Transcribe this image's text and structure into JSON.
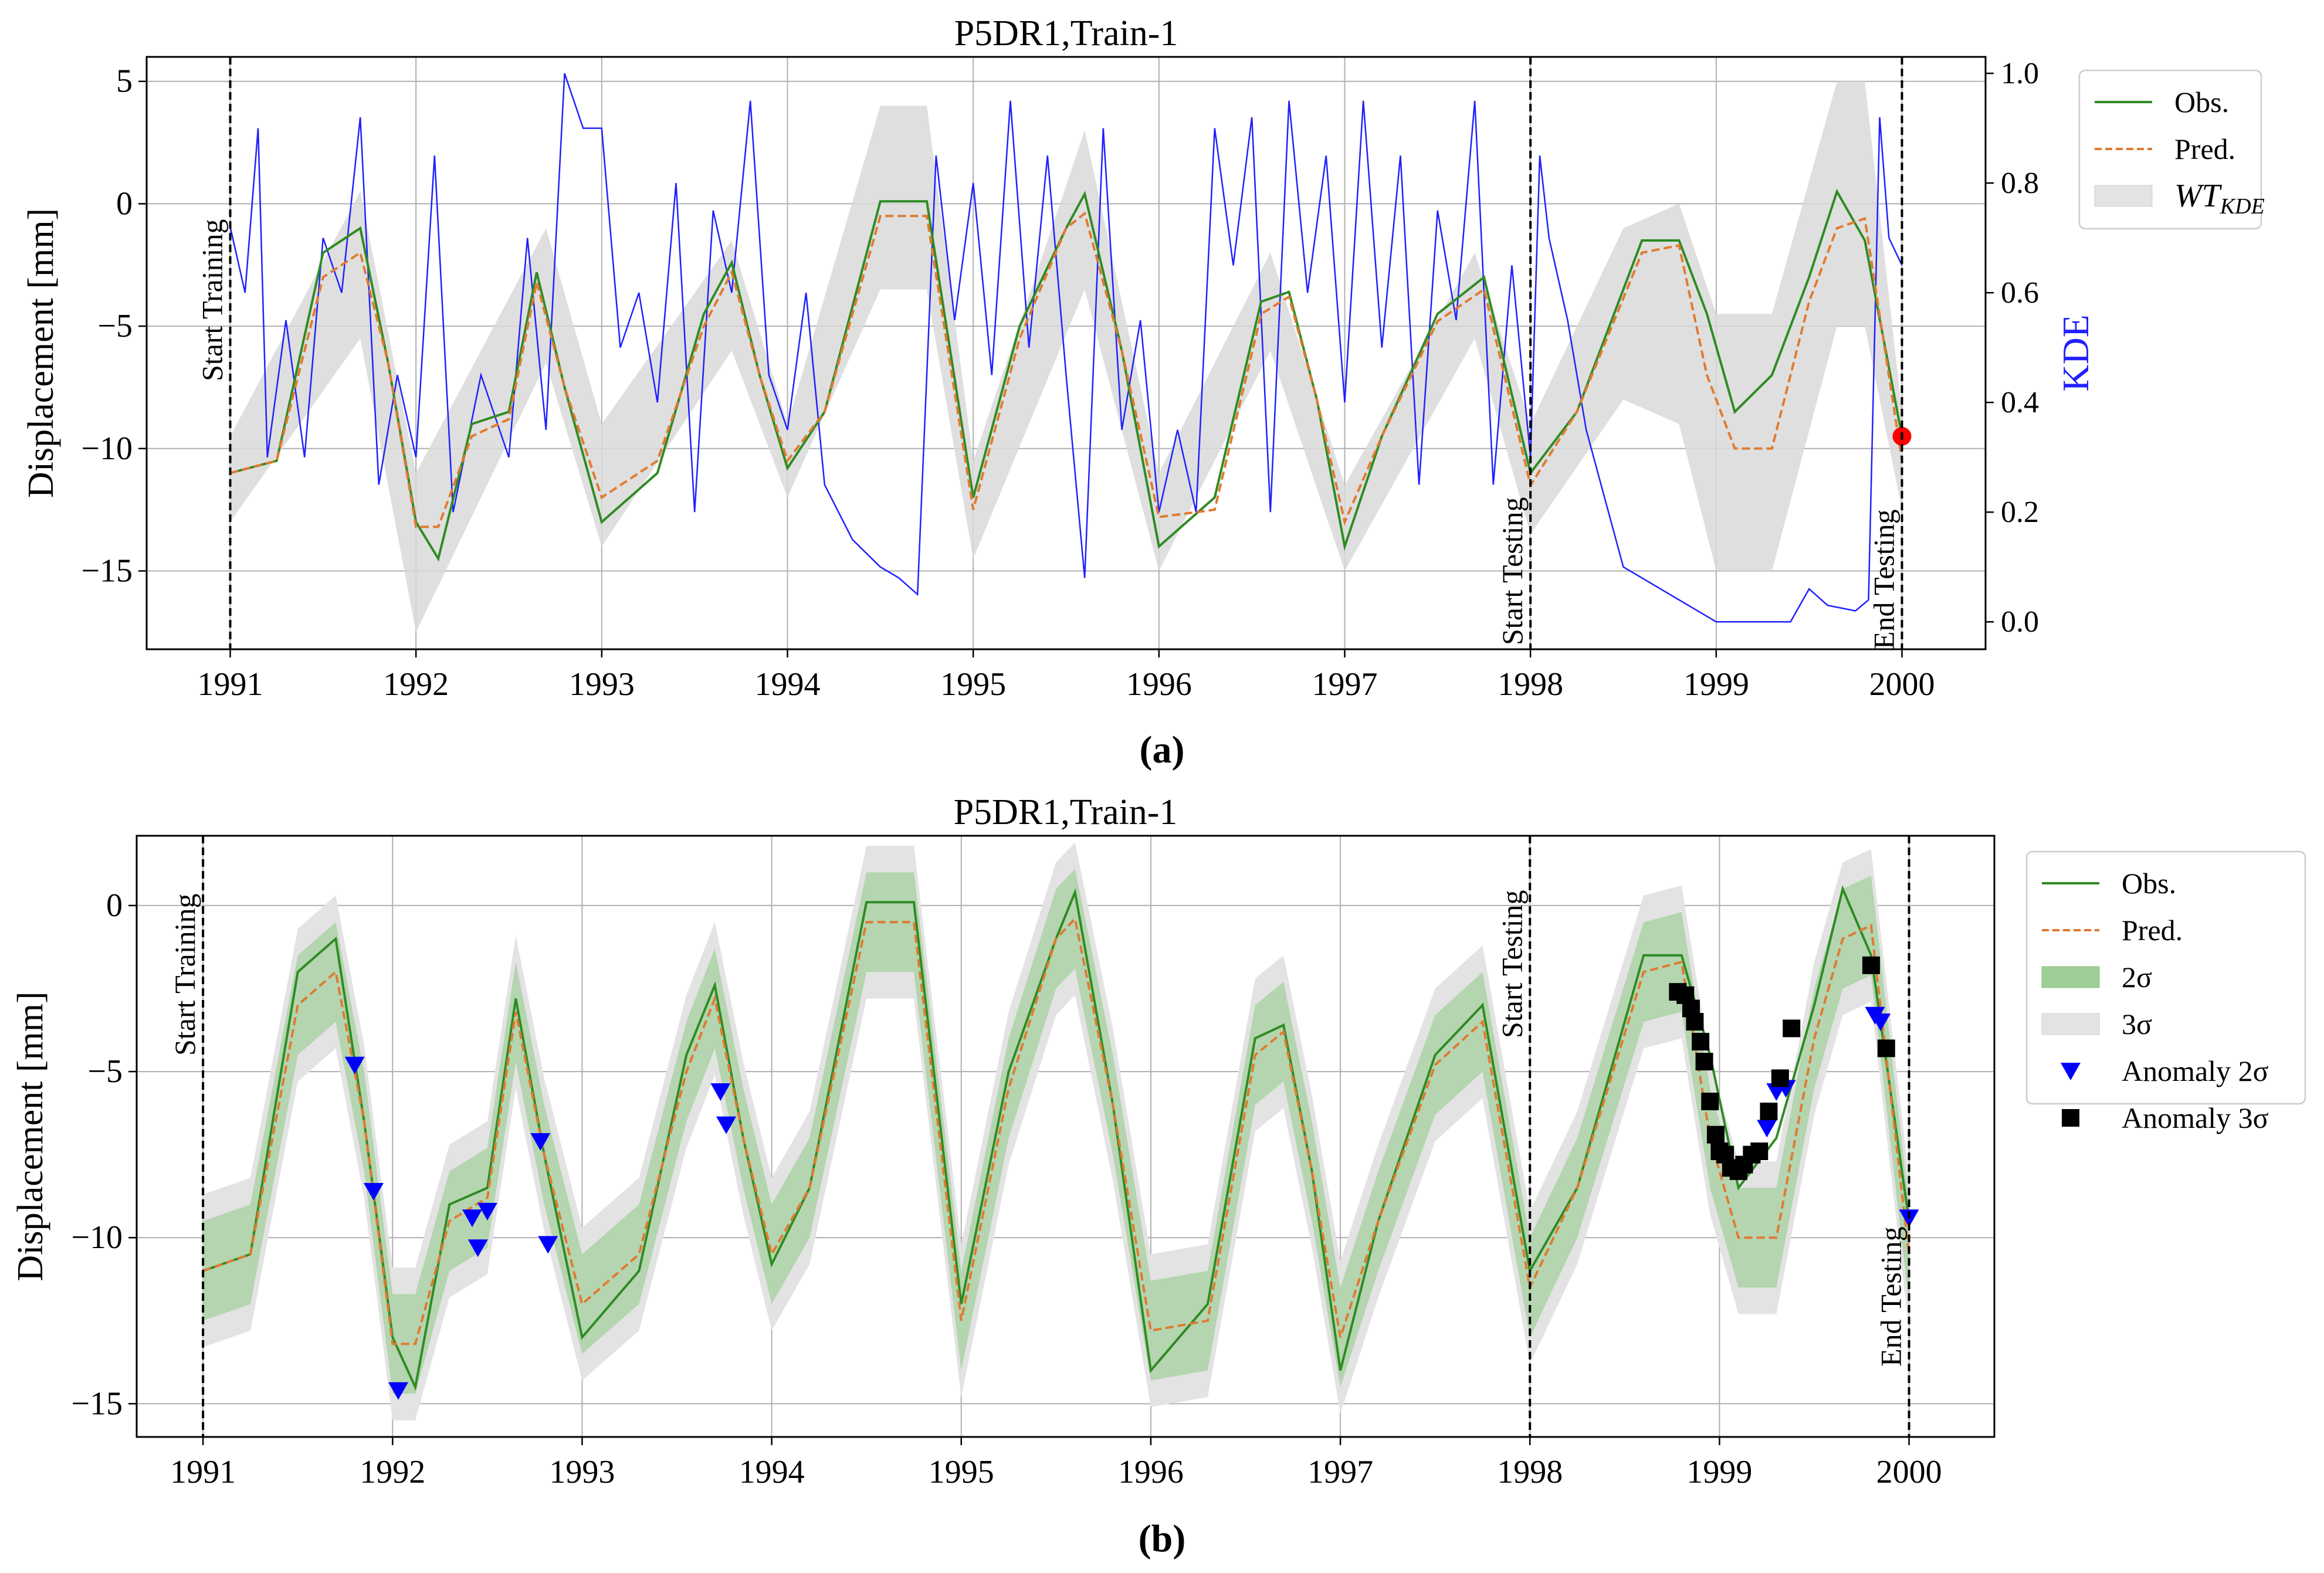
{
  "chart_data": [
    {
      "type": "line",
      "panel_label": "(a)",
      "title": "P5DR1,Train-1",
      "xlabel": "",
      "ylabel": "Displacement [mm]",
      "y2label": "KDE",
      "xlim": [
        1990.55,
        2000.45
      ],
      "ylim": [
        -18.2,
        6.0
      ],
      "y2lim": [
        -0.05,
        1.03
      ],
      "xticks": [
        1991,
        1992,
        1993,
        1994,
        1995,
        1996,
        1997,
        1998,
        1999,
        2000
      ],
      "yticks": [
        5,
        0,
        -5,
        -10,
        -15
      ],
      "y2ticks": [
        1.0,
        0.8,
        0.6,
        0.4,
        0.2,
        0.0
      ],
      "grid": true,
      "legend": {
        "placement": "outside-right-top",
        "entries": [
          "Obs.",
          "Pred.",
          "WT_KDE"
        ]
      },
      "vlines": [
        {
          "x": 1991,
          "label": "Start Training"
        },
        {
          "x": 1998,
          "label": "Start Testing"
        },
        {
          "x": 2000,
          "label": "End Testing"
        }
      ],
      "series": [
        {
          "name": "Obs.",
          "x": [
            1991.0,
            1991.25,
            1991.5,
            1991.7,
            1991.85,
            1992.0,
            1992.12,
            1992.3,
            1992.5,
            1992.65,
            1992.8,
            1993.0,
            1993.3,
            1993.55,
            1993.7,
            1993.85,
            1994.0,
            1994.2,
            1994.5,
            1994.75,
            1995.0,
            1995.25,
            1995.5,
            1995.6,
            1995.8,
            1996.0,
            1996.3,
            1996.55,
            1996.7,
            1996.85,
            1997.0,
            1997.2,
            1997.5,
            1997.75,
            1998.0,
            1998.25,
            1998.6,
            1998.8,
            1998.95,
            1999.1,
            1999.3,
            1999.5,
            1999.65,
            1999.8,
            2000.0
          ],
          "values": [
            -11.0,
            -10.5,
            -2.0,
            -1.0,
            -6.5,
            -13.0,
            -14.5,
            -9.0,
            -8.5,
            -2.8,
            -7.5,
            -13.0,
            -11.0,
            -4.5,
            -2.4,
            -7.0,
            -10.8,
            -8.5,
            0.1,
            0.1,
            -12.0,
            -5.0,
            -1.0,
            0.4,
            -6.0,
            -14.0,
            -12.0,
            -4.0,
            -3.6,
            -8.0,
            -14.0,
            -9.5,
            -4.5,
            -3.0,
            -11.0,
            -8.5,
            -1.5,
            -1.5,
            -4.5,
            -8.5,
            -7.0,
            -3.0,
            0.5,
            -1.5,
            -9.5
          ]
        },
        {
          "name": "Pred.",
          "x": [
            1991.0,
            1991.25,
            1991.5,
            1991.7,
            1991.85,
            1992.0,
            1992.12,
            1992.3,
            1992.5,
            1992.65,
            1992.8,
            1993.0,
            1993.3,
            1993.55,
            1993.7,
            1993.85,
            1994.0,
            1994.2,
            1994.5,
            1994.75,
            1995.0,
            1995.25,
            1995.5,
            1995.6,
            1995.8,
            1996.0,
            1996.3,
            1996.55,
            1996.7,
            1996.85,
            1997.0,
            1997.2,
            1997.5,
            1997.75,
            1998.0,
            1998.25,
            1998.6,
            1998.8,
            1998.95,
            1999.1,
            1999.3,
            1999.5,
            1999.65,
            1999.8,
            2000.0
          ],
          "values": [
            -11.0,
            -10.5,
            -3.0,
            -2.0,
            -6.5,
            -13.2,
            -13.2,
            -9.5,
            -8.8,
            -3.2,
            -7.5,
            -12.0,
            -10.5,
            -5.0,
            -2.8,
            -7.0,
            -10.5,
            -8.5,
            -0.5,
            -0.5,
            -12.5,
            -5.5,
            -1.0,
            -0.4,
            -6.0,
            -12.8,
            -12.5,
            -4.5,
            -3.8,
            -8.0,
            -13.0,
            -9.5,
            -4.8,
            -3.5,
            -11.5,
            -8.5,
            -2.0,
            -1.7,
            -7.0,
            -10.0,
            -10.0,
            -4.0,
            -1.0,
            -0.6,
            -10.5
          ]
        },
        {
          "name": "WT_KDE",
          "type": "band",
          "x": [
            1991.0,
            1991.7,
            1992.0,
            1992.7,
            1993.0,
            1993.7,
            1994.0,
            1994.5,
            1994.75,
            1995.0,
            1995.6,
            1996.0,
            1996.6,
            1997.0,
            1997.7,
            1998.0,
            1998.5,
            1998.8,
            1999.0,
            1999.3,
            1999.65,
            1999.8,
            2000.0
          ],
          "upper": [
            -9.5,
            0.5,
            -11.0,
            -1.0,
            -9.0,
            -1.5,
            -9.0,
            4.0,
            4.0,
            -10.5,
            3.0,
            -11.0,
            -2.0,
            -11.5,
            -2.0,
            -9.0,
            -1.0,
            0.0,
            -4.5,
            -4.5,
            5.0,
            5.0,
            -8.5
          ],
          "lower": [
            -13.0,
            -5.5,
            -17.5,
            -6.5,
            -14.0,
            -6.0,
            -12.0,
            -3.5,
            -3.5,
            -14.5,
            -3.5,
            -15.0,
            -6.0,
            -15.0,
            -5.5,
            -13.5,
            -8.0,
            -9.0,
            -15.0,
            -15.0,
            -5.0,
            -5.0,
            -12.5
          ]
        },
        {
          "name": "KDE",
          "axis": "right",
          "x": [
            1991.0,
            1991.08,
            1991.15,
            1991.2,
            1991.3,
            1991.4,
            1991.5,
            1991.6,
            1991.7,
            1991.8,
            1991.9,
            1992.0,
            1992.1,
            1992.2,
            1992.35,
            1992.5,
            1992.6,
            1992.7,
            1992.8,
            1992.9,
            1993.0,
            1993.1,
            1993.2,
            1993.3,
            1993.4,
            1993.5,
            1993.6,
            1993.7,
            1993.8,
            1993.9,
            1994.0,
            1994.1,
            1994.2,
            1994.35,
            1994.5,
            1994.6,
            1994.7,
            1994.8,
            1994.9,
            1995.0,
            1995.1,
            1995.2,
            1995.3,
            1995.4,
            1995.5,
            1995.6,
            1995.7,
            1995.8,
            1995.9,
            1996.0,
            1996.1,
            1996.2,
            1996.3,
            1996.4,
            1996.5,
            1996.6,
            1996.7,
            1996.8,
            1996.9,
            1997.0,
            1997.1,
            1997.2,
            1997.3,
            1997.4,
            1997.5,
            1997.6,
            1997.7,
            1997.8,
            1997.9,
            1998.0,
            1998.05,
            1998.1,
            1998.2,
            1998.3,
            1998.5,
            1998.8,
            1999.0,
            1999.2,
            1999.4,
            1999.5,
            1999.6,
            1999.75,
            1999.82,
            1999.88,
            1999.93,
            2000.0
          ],
          "values": [
            0.72,
            0.6,
            0.9,
            0.3,
            0.55,
            0.3,
            0.7,
            0.6,
            0.92,
            0.25,
            0.45,
            0.3,
            0.85,
            0.2,
            0.45,
            0.3,
            0.7,
            0.35,
            1.0,
            0.9,
            0.9,
            0.5,
            0.6,
            0.4,
            0.8,
            0.2,
            0.75,
            0.6,
            0.95,
            0.45,
            0.35,
            0.6,
            0.25,
            0.15,
            0.1,
            0.08,
            0.05,
            0.85,
            0.55,
            0.8,
            0.45,
            0.95,
            0.5,
            0.85,
            0.45,
            0.08,
            0.9,
            0.35,
            0.55,
            0.2,
            0.35,
            0.2,
            0.9,
            0.65,
            0.92,
            0.2,
            0.95,
            0.6,
            0.85,
            0.4,
            0.95,
            0.5,
            0.85,
            0.25,
            0.75,
            0.55,
            0.95,
            0.25,
            0.65,
            0.3,
            0.85,
            0.7,
            0.55,
            0.35,
            0.1,
            0.04,
            0.0,
            0.0,
            0.0,
            0.06,
            0.03,
            0.02,
            0.04,
            0.92,
            0.7,
            0.65
          ]
        }
      ],
      "annotations": [
        {
          "type": "point",
          "x": 2000.0,
          "y": -9.5,
          "color": "#ff0000"
        }
      ]
    },
    {
      "type": "line",
      "panel_label": "(b)",
      "title": "P5DR1,Train-1",
      "xlabel": "",
      "ylabel": "Displacement [mm]",
      "xlim": [
        1990.65,
        2000.45
      ],
      "ylim": [
        -16.0,
        2.1
      ],
      "xticks": [
        1991,
        1992,
        1993,
        1994,
        1995,
        1996,
        1997,
        1998,
        1999,
        2000
      ],
      "yticks": [
        0,
        -5,
        -10,
        -15
      ],
      "grid": true,
      "legend": {
        "placement": "outside-right-top",
        "entries": [
          "Obs.",
          "Pred.",
          "2σ",
          "3σ",
          "Anomaly 2σ",
          "Anomaly 3σ"
        ]
      },
      "vlines": [
        {
          "x": 1991,
          "label": "Start Training"
        },
        {
          "x": 1998,
          "label": "Start Testing"
        },
        {
          "x": 2000,
          "label": "End Testing"
        }
      ],
      "series": [
        {
          "name": "Obs.",
          "x": [
            1991.0,
            1991.25,
            1991.5,
            1991.7,
            1991.85,
            1992.0,
            1992.12,
            1992.3,
            1992.5,
            1992.65,
            1992.8,
            1993.0,
            1993.3,
            1993.55,
            1993.7,
            1993.85,
            1994.0,
            1994.2,
            1994.5,
            1994.75,
            1995.0,
            1995.25,
            1995.5,
            1995.6,
            1995.8,
            1996.0,
            1996.3,
            1996.55,
            1996.7,
            1996.85,
            1997.0,
            1997.2,
            1997.5,
            1997.75,
            1998.0,
            1998.25,
            1998.6,
            1998.8,
            1998.95,
            1999.1,
            1999.3,
            1999.5,
            1999.65,
            1999.8,
            2000.0
          ],
          "values": [
            -11.0,
            -10.5,
            -2.0,
            -1.0,
            -6.5,
            -13.0,
            -14.5,
            -9.0,
            -8.5,
            -2.8,
            -7.5,
            -13.0,
            -11.0,
            -4.5,
            -2.4,
            -7.0,
            -10.8,
            -8.5,
            0.1,
            0.1,
            -12.0,
            -5.0,
            -1.0,
            0.4,
            -6.0,
            -14.0,
            -12.0,
            -4.0,
            -3.6,
            -8.0,
            -14.0,
            -9.5,
            -4.5,
            -3.0,
            -11.0,
            -8.5,
            -1.5,
            -1.5,
            -4.5,
            -8.5,
            -7.0,
            -3.0,
            0.5,
            -1.5,
            -9.5
          ]
        },
        {
          "name": "Pred.",
          "x": [
            1991.0,
            1991.25,
            1991.5,
            1991.7,
            1991.85,
            1992.0,
            1992.12,
            1992.3,
            1992.5,
            1992.65,
            1992.8,
            1993.0,
            1993.3,
            1993.55,
            1993.7,
            1993.85,
            1994.0,
            1994.2,
            1994.5,
            1994.75,
            1995.0,
            1995.25,
            1995.5,
            1995.6,
            1995.8,
            1996.0,
            1996.3,
            1996.55,
            1996.7,
            1996.85,
            1997.0,
            1997.2,
            1997.5,
            1997.75,
            1998.0,
            1998.25,
            1998.6,
            1998.8,
            1998.95,
            1999.1,
            1999.3,
            1999.5,
            1999.65,
            1999.8,
            2000.0
          ],
          "values": [
            -11.0,
            -10.5,
            -3.0,
            -2.0,
            -6.5,
            -13.2,
            -13.2,
            -9.5,
            -8.8,
            -3.2,
            -7.5,
            -12.0,
            -10.5,
            -5.0,
            -2.8,
            -7.0,
            -10.5,
            -8.5,
            -0.5,
            -0.5,
            -12.5,
            -5.5,
            -1.0,
            -0.4,
            -6.0,
            -12.8,
            -12.5,
            -4.5,
            -3.8,
            -8.0,
            -13.0,
            -9.5,
            -4.8,
            -3.5,
            -11.5,
            -8.5,
            -2.0,
            -1.7,
            -7.0,
            -10.0,
            -10.0,
            -4.0,
            -1.0,
            -0.6,
            -10.5
          ]
        },
        {
          "name": "2σ",
          "type": "band",
          "offset": 1.5
        },
        {
          "name": "3σ",
          "type": "band",
          "offset": 2.3
        },
        {
          "name": "Anomaly 2σ",
          "type": "scatter",
          "marker": "triangle-down",
          "points": [
            [
              1991.8,
              -4.8
            ],
            [
              1991.9,
              -8.6
            ],
            [
              1992.03,
              -14.6
            ],
            [
              1992.42,
              -9.4
            ],
            [
              1992.45,
              -10.3
            ],
            [
              1992.5,
              -9.2
            ],
            [
              1992.78,
              -7.1
            ],
            [
              1992.82,
              -10.2
            ],
            [
              1993.73,
              -5.6
            ],
            [
              1993.76,
              -6.6
            ],
            [
              1999.25,
              -6.7
            ],
            [
              1999.3,
              -5.6
            ],
            [
              1999.35,
              -5.5
            ],
            [
              1999.82,
              -3.3
            ],
            [
              1999.85,
              -3.5
            ],
            [
              2000.0,
              -9.4
            ]
          ]
        },
        {
          "name": "Anomaly 3σ",
          "type": "scatter",
          "marker": "square",
          "points": [
            [
              1998.78,
              -2.6
            ],
            [
              1998.82,
              -2.7
            ],
            [
              1998.85,
              -3.1
            ],
            [
              1998.87,
              -3.5
            ],
            [
              1998.9,
              -4.1
            ],
            [
              1998.92,
              -4.7
            ],
            [
              1998.95,
              -5.9
            ],
            [
              1998.98,
              -6.9
            ],
            [
              1999.0,
              -7.4
            ],
            [
              1999.03,
              -7.5
            ],
            [
              1999.06,
              -7.9
            ],
            [
              1999.1,
              -8.0
            ],
            [
              1999.13,
              -7.8
            ],
            [
              1999.17,
              -7.5
            ],
            [
              1999.21,
              -7.4
            ],
            [
              1999.26,
              -6.2
            ],
            [
              1999.32,
              -5.2
            ],
            [
              1999.38,
              -3.7
            ],
            [
              1999.8,
              -1.8
            ],
            [
              1999.88,
              -4.3
            ]
          ]
        }
      ]
    }
  ]
}
